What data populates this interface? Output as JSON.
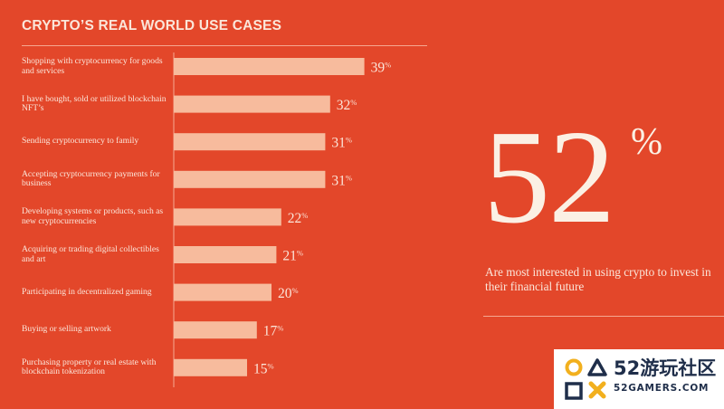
{
  "chart_data": {
    "type": "bar",
    "orientation": "horizontal",
    "title": "CRYPTO’S REAL WORLD USE CASES",
    "categories": [
      "Shopping with cryptocurrency for goods and services",
      "I have bought, sold or utilized blockchain NFT’s",
      "Sending cryptocurrency to family",
      "Accepting cryptocurrency payments for business",
      "Developing systems or products, such as new cryptocurrencies",
      "Acquiring or trading digital collectibles and art",
      "Participating in decentralized gaming",
      "Buying or selling artwork",
      "Purchasing property or real estate with blockchain tokenization"
    ],
    "values": [
      39,
      32,
      31,
      31,
      22,
      21,
      20,
      17,
      15
    ],
    "value_suffix": "%",
    "bar_color": "#f7bb9d",
    "xlim": [
      0,
      50
    ]
  },
  "highlight": {
    "number": "52",
    "suffix": "%",
    "caption": "Are most interested in using crypto to invest in their financial future"
  },
  "logo": {
    "name": "52游玩社区",
    "domain": "52GAMERS.COM"
  },
  "colors": {
    "background": "#e3472a",
    "text": "#fbe6da",
    "logo_text": "#1f2e4a",
    "logo_yellow": "#f2b01e"
  }
}
